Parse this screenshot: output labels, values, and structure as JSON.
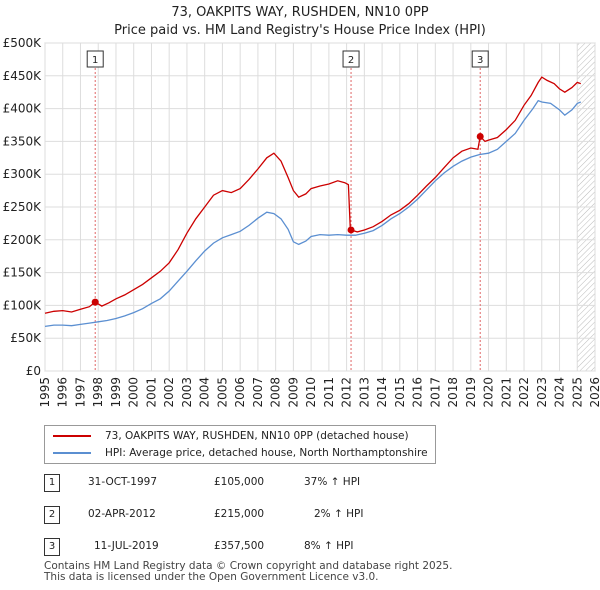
{
  "chart_data": {
    "type": "line",
    "title": "73, OAKPITS WAY, RUSHDEN, NN10 0PP",
    "subtitle": "Price paid vs. HM Land Registry's House Price Index (HPI)",
    "xlim": [
      1995,
      2026
    ],
    "ylim": [
      0,
      500000
    ],
    "x_ticks": [
      "1995",
      "1996",
      "1997",
      "1998",
      "1999",
      "2000",
      "2001",
      "2002",
      "2003",
      "2004",
      "2005",
      "2006",
      "2007",
      "2008",
      "2009",
      "2010",
      "2011",
      "2012",
      "2013",
      "2014",
      "2015",
      "2016",
      "2017",
      "2018",
      "2019",
      "2020",
      "2021",
      "2022",
      "2023",
      "2024",
      "2025",
      "2026"
    ],
    "y_ticks": [
      {
        "value": 0,
        "label": "£0"
      },
      {
        "value": 50000,
        "label": "£50K"
      },
      {
        "value": 100000,
        "label": "£100K"
      },
      {
        "value": 150000,
        "label": "£150K"
      },
      {
        "value": 200000,
        "label": "£200K"
      },
      {
        "value": 250000,
        "label": "£250K"
      },
      {
        "value": 300000,
        "label": "£300K"
      },
      {
        "value": 350000,
        "label": "£350K"
      },
      {
        "value": 400000,
        "label": "£400K"
      },
      {
        "value": 450000,
        "label": "£450K"
      },
      {
        "value": 500000,
        "label": "£500K"
      }
    ],
    "grid": true,
    "series": [
      {
        "name": "73, OAKPITS WAY, RUSHDEN, NN10 0PP (detached house)",
        "color": "#cc0000",
        "points": [
          [
            1995.0,
            88000
          ],
          [
            1995.5,
            91000
          ],
          [
            1996.0,
            92000
          ],
          [
            1996.5,
            90000
          ],
          [
            1997.0,
            94000
          ],
          [
            1997.5,
            98000
          ],
          [
            1997.83,
            105000
          ],
          [
            1998.2,
            99000
          ],
          [
            1998.6,
            104000
          ],
          [
            1999.0,
            110000
          ],
          [
            1999.5,
            116000
          ],
          [
            2000.0,
            124000
          ],
          [
            2000.5,
            132000
          ],
          [
            2001.0,
            142000
          ],
          [
            2001.5,
            152000
          ],
          [
            2002.0,
            165000
          ],
          [
            2002.5,
            185000
          ],
          [
            2003.0,
            210000
          ],
          [
            2003.5,
            232000
          ],
          [
            2004.0,
            250000
          ],
          [
            2004.5,
            268000
          ],
          [
            2005.0,
            275000
          ],
          [
            2005.5,
            272000
          ],
          [
            2006.0,
            278000
          ],
          [
            2006.5,
            292000
          ],
          [
            2007.0,
            308000
          ],
          [
            2007.5,
            325000
          ],
          [
            2007.9,
            332000
          ],
          [
            2008.3,
            320000
          ],
          [
            2008.7,
            295000
          ],
          [
            2009.0,
            275000
          ],
          [
            2009.3,
            265000
          ],
          [
            2009.7,
            270000
          ],
          [
            2010.0,
            278000
          ],
          [
            2010.5,
            282000
          ],
          [
            2011.0,
            285000
          ],
          [
            2011.5,
            290000
          ],
          [
            2011.9,
            287000
          ],
          [
            2012.1,
            284000
          ],
          [
            2012.2,
            220000
          ],
          [
            2012.25,
            215000
          ],
          [
            2012.6,
            212000
          ],
          [
            2013.0,
            215000
          ],
          [
            2013.5,
            220000
          ],
          [
            2014.0,
            228000
          ],
          [
            2014.5,
            238000
          ],
          [
            2015.0,
            245000
          ],
          [
            2015.5,
            255000
          ],
          [
            2016.0,
            268000
          ],
          [
            2016.5,
            282000
          ],
          [
            2017.0,
            295000
          ],
          [
            2017.5,
            310000
          ],
          [
            2018.0,
            325000
          ],
          [
            2018.5,
            335000
          ],
          [
            2019.0,
            340000
          ],
          [
            2019.4,
            338000
          ],
          [
            2019.53,
            357500
          ],
          [
            2019.8,
            350000
          ],
          [
            2020.0,
            352000
          ],
          [
            2020.5,
            356000
          ],
          [
            2021.0,
            368000
          ],
          [
            2021.5,
            382000
          ],
          [
            2022.0,
            405000
          ],
          [
            2022.4,
            420000
          ],
          [
            2022.8,
            440000
          ],
          [
            2023.0,
            448000
          ],
          [
            2023.3,
            443000
          ],
          [
            2023.7,
            438000
          ],
          [
            2024.0,
            430000
          ],
          [
            2024.3,
            425000
          ],
          [
            2024.7,
            432000
          ],
          [
            2025.0,
            440000
          ],
          [
            2025.2,
            438000
          ]
        ]
      },
      {
        "name": "HPI: Average price, detached house, North Northamptonshire",
        "color": "#5b8fd1",
        "points": [
          [
            1995.0,
            68000
          ],
          [
            1995.5,
            70000
          ],
          [
            1996.0,
            70000
          ],
          [
            1996.5,
            69000
          ],
          [
            1997.0,
            71000
          ],
          [
            1997.5,
            73000
          ],
          [
            1998.0,
            75000
          ],
          [
            1998.5,
            77000
          ],
          [
            1999.0,
            80000
          ],
          [
            1999.5,
            84000
          ],
          [
            2000.0,
            89000
          ],
          [
            2000.5,
            95000
          ],
          [
            2001.0,
            103000
          ],
          [
            2001.5,
            110000
          ],
          [
            2002.0,
            122000
          ],
          [
            2002.5,
            137000
          ],
          [
            2003.0,
            152000
          ],
          [
            2003.5,
            168000
          ],
          [
            2004.0,
            183000
          ],
          [
            2004.5,
            195000
          ],
          [
            2005.0,
            203000
          ],
          [
            2005.5,
            208000
          ],
          [
            2006.0,
            213000
          ],
          [
            2006.5,
            222000
          ],
          [
            2007.0,
            233000
          ],
          [
            2007.5,
            242000
          ],
          [
            2007.9,
            240000
          ],
          [
            2008.3,
            232000
          ],
          [
            2008.7,
            216000
          ],
          [
            2009.0,
            197000
          ],
          [
            2009.3,
            193000
          ],
          [
            2009.7,
            198000
          ],
          [
            2010.0,
            205000
          ],
          [
            2010.5,
            208000
          ],
          [
            2011.0,
            207000
          ],
          [
            2011.5,
            208000
          ],
          [
            2012.0,
            207000
          ],
          [
            2012.5,
            207000
          ],
          [
            2013.0,
            210000
          ],
          [
            2013.5,
            214000
          ],
          [
            2014.0,
            222000
          ],
          [
            2014.5,
            232000
          ],
          [
            2015.0,
            240000
          ],
          [
            2015.5,
            250000
          ],
          [
            2016.0,
            262000
          ],
          [
            2016.5,
            276000
          ],
          [
            2017.0,
            290000
          ],
          [
            2017.5,
            302000
          ],
          [
            2018.0,
            312000
          ],
          [
            2018.5,
            320000
          ],
          [
            2019.0,
            326000
          ],
          [
            2019.5,
            330000
          ],
          [
            2020.0,
            332000
          ],
          [
            2020.5,
            338000
          ],
          [
            2021.0,
            350000
          ],
          [
            2021.5,
            362000
          ],
          [
            2022.0,
            382000
          ],
          [
            2022.5,
            400000
          ],
          [
            2022.8,
            412000
          ],
          [
            2023.0,
            410000
          ],
          [
            2023.5,
            408000
          ],
          [
            2024.0,
            398000
          ],
          [
            2024.3,
            390000
          ],
          [
            2024.7,
            398000
          ],
          [
            2025.0,
            408000
          ],
          [
            2025.2,
            410000
          ]
        ]
      }
    ],
    "markers": [
      {
        "num": "1",
        "x": 1997.83,
        "y": 105000
      },
      {
        "num": "2",
        "x": 2012.25,
        "y": 215000
      },
      {
        "num": "3",
        "x": 2019.53,
        "y": 357500
      }
    ],
    "hatch_from": 2025.0
  },
  "legend": [
    {
      "label": "73, OAKPITS WAY, RUSHDEN, NN10 0PP (detached house)",
      "color": "#cc0000"
    },
    {
      "label": "HPI: Average price, detached house, North Northamptonshire",
      "color": "#5b8fd1"
    }
  ],
  "sales": [
    {
      "num": "1",
      "date": "31-OCT-1997",
      "price": "£105,000",
      "hpi": "37% ↑ HPI"
    },
    {
      "num": "2",
      "date": "02-APR-2012",
      "price": "£215,000",
      "hpi": "2% ↑ HPI"
    },
    {
      "num": "3",
      "date": "11-JUL-2019",
      "price": "£357,500",
      "hpi": "8% ↑ HPI"
    }
  ],
  "footer": {
    "line1": "Contains HM Land Registry data © Crown copyright and database right 2025.",
    "line2": "This data is licensed under the Open Government Licence v3.0."
  }
}
